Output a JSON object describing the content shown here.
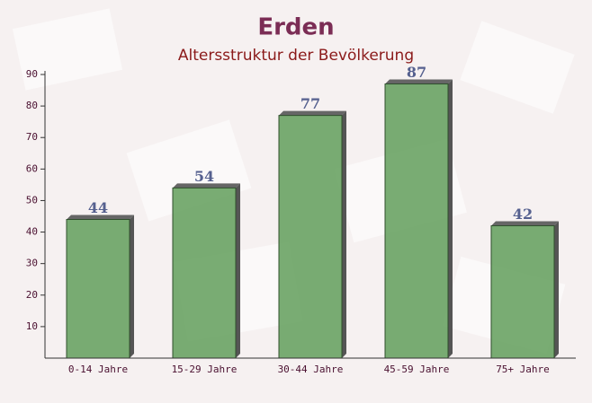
{
  "chart_data": {
    "type": "bar",
    "title": "Erden",
    "subtitle": "Altersstruktur der Bevölkerung",
    "categories": [
      "0-14 Jahre",
      "15-29 Jahre",
      "30-44 Jahre",
      "45-59 Jahre",
      "75+ Jahre"
    ],
    "values": [
      44,
      54,
      77,
      87,
      42
    ],
    "color": "#6aa364",
    "ylim": [
      0,
      90
    ],
    "yticks": [
      10,
      20,
      30,
      40,
      50,
      60,
      70,
      80,
      90
    ],
    "grid": false
  }
}
